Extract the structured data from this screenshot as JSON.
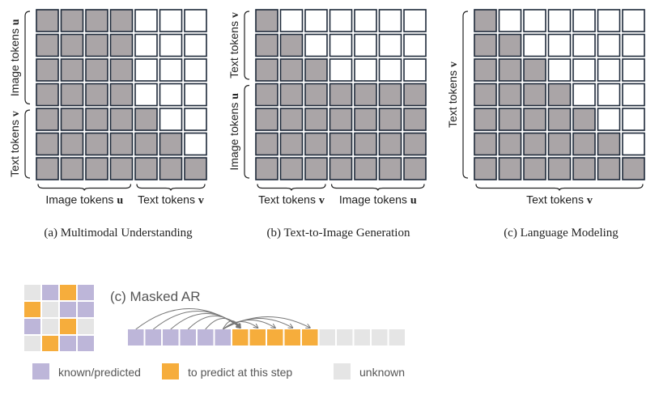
{
  "colors": {
    "filled": "#aaa5a7",
    "empty": "#ffffff",
    "cell_border": "#1e2a3a",
    "known": "#bdb6d9",
    "predict": "#f6ad3c",
    "unknown": "#e5e5e5",
    "text": "#222222",
    "gray_text": "#555555"
  },
  "grids": [
    {
      "caption": "(a) Multimodal Understanding",
      "left_labels": [
        {
          "text": "Image tokens ",
          "bold": "u",
          "rows": [
            0,
            3
          ]
        },
        {
          "text": "Text tokens ",
          "bold": "v",
          "rows": [
            4,
            6
          ]
        }
      ],
      "bottom_labels": [
        {
          "text": "Image tokens ",
          "bold": "u",
          "cols": [
            0,
            3
          ]
        },
        {
          "text": "Text tokens ",
          "bold": "v",
          "cols": [
            4,
            6
          ]
        }
      ],
      "cells": [
        "1111000",
        "1111000",
        "1111000",
        "1111000",
        "1111100",
        "1111110",
        "1111111"
      ]
    },
    {
      "caption": "(b) Text-to-Image Generation",
      "left_labels": [
        {
          "text": "Text tokens ",
          "bold": "v",
          "rows": [
            0,
            2
          ]
        },
        {
          "text": "Image tokens ",
          "bold": "u",
          "rows": [
            3,
            6
          ]
        }
      ],
      "bottom_labels": [
        {
          "text": "Text tokens ",
          "bold": "v",
          "cols": [
            0,
            2
          ]
        },
        {
          "text": "Image tokens ",
          "bold": "u",
          "cols": [
            3,
            6
          ]
        }
      ],
      "cells": [
        "1000000",
        "1100000",
        "1110000",
        "1111111",
        "1111111",
        "1111111",
        "1111111"
      ]
    },
    {
      "caption": "(c) Language Modeling",
      "left_labels": [
        {
          "text": "Text tokens ",
          "bold": "v",
          "rows": [
            0,
            6
          ]
        }
      ],
      "bottom_labels": [
        {
          "text": "Text tokens ",
          "bold": "v",
          "cols": [
            0,
            6
          ]
        }
      ],
      "cells": [
        "1000000",
        "1100000",
        "1110000",
        "1111000",
        "1111100",
        "1111110",
        "1111111"
      ]
    }
  ],
  "masked_ar": {
    "title": "(c) Masked AR",
    "mini_grid": [
      [
        "unknown",
        "known",
        "predict",
        "known"
      ],
      [
        "predict",
        "unknown",
        "known",
        "known"
      ],
      [
        "known",
        "unknown",
        "predict",
        "unknown"
      ],
      [
        "unknown",
        "predict",
        "known",
        "known"
      ]
    ],
    "sequence": [
      "known",
      "known",
      "known",
      "known",
      "known",
      "known",
      "predict",
      "predict",
      "predict",
      "predict",
      "predict",
      "unknown",
      "unknown",
      "unknown",
      "unknown",
      "unknown"
    ]
  },
  "legend": [
    {
      "kind": "known",
      "label": "known/predicted"
    },
    {
      "kind": "predict",
      "label": "to predict at this step"
    },
    {
      "kind": "unknown",
      "label": "unknown"
    }
  ]
}
